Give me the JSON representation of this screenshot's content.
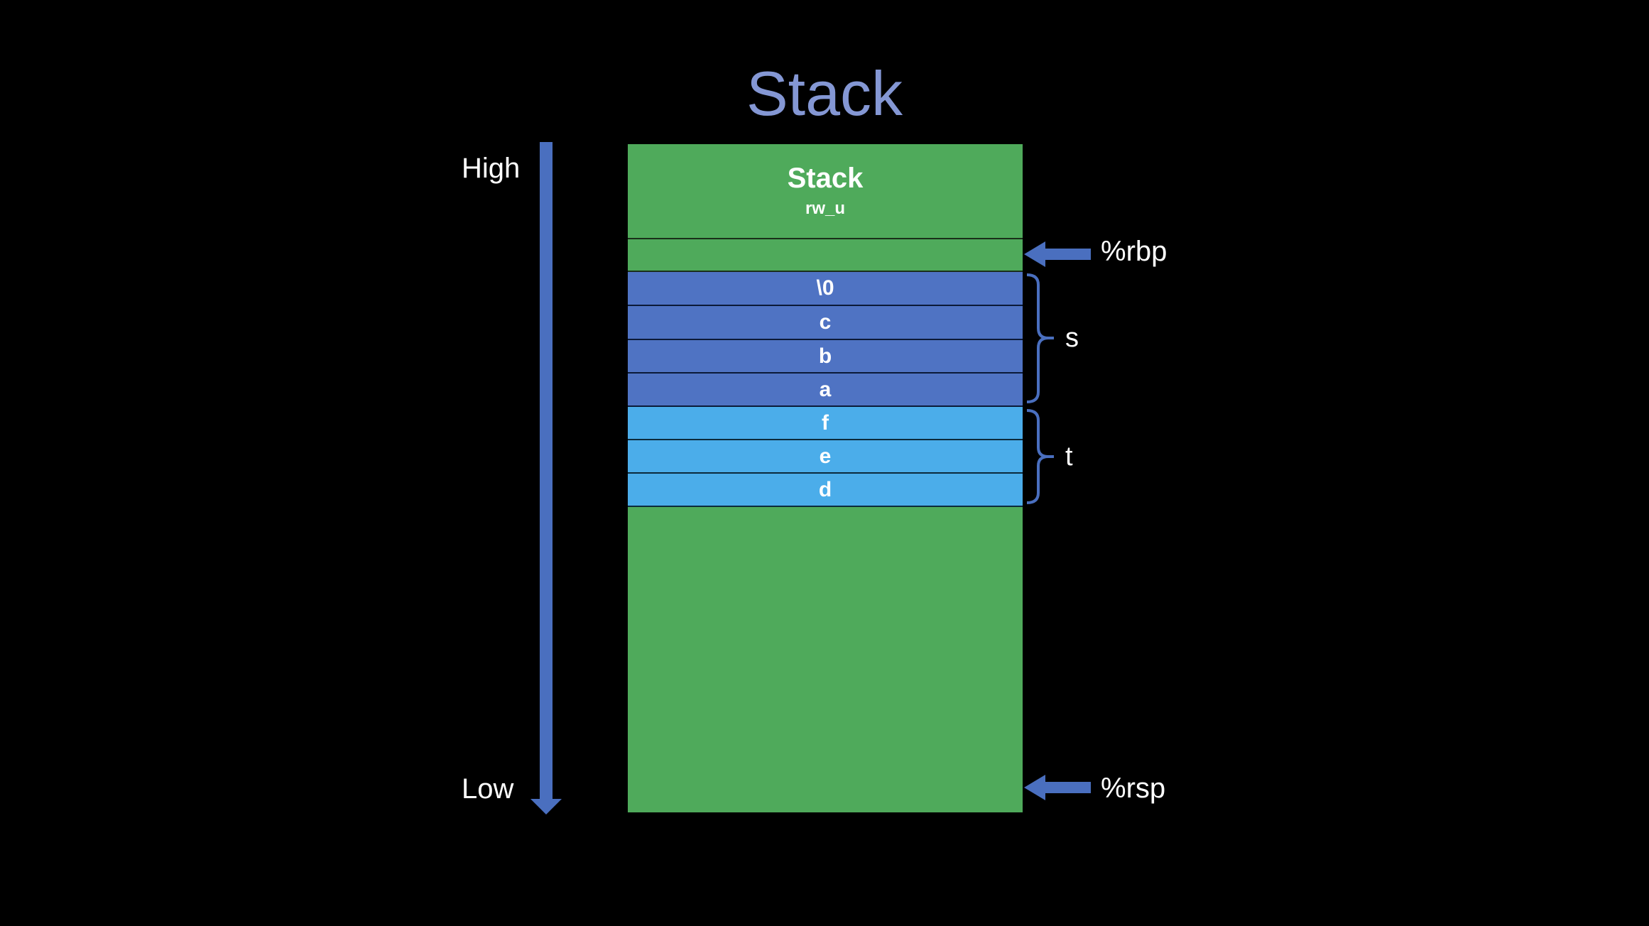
{
  "title": "Stack",
  "axis": {
    "high_label": "High",
    "low_label": "Low"
  },
  "region": {
    "name": "Stack",
    "perm": "rw_u"
  },
  "cells": [
    {
      "label": "\\0",
      "group": "s"
    },
    {
      "label": "c",
      "group": "s"
    },
    {
      "label": "b",
      "group": "s"
    },
    {
      "label": "a",
      "group": "s"
    },
    {
      "label": "f",
      "group": "t"
    },
    {
      "label": "e",
      "group": "t"
    },
    {
      "label": "d",
      "group": "t"
    }
  ],
  "groups": {
    "s": "s",
    "t": "t"
  },
  "pointers": {
    "rbp": "%rbp",
    "rsp": "%rsp"
  },
  "colors": {
    "background": "#000000",
    "title": "#8497d4",
    "stack_green": "#4faa5b",
    "s_cells": "#4f73c3",
    "t_cells": "#4badea",
    "arrow": "#4a6fbf"
  }
}
